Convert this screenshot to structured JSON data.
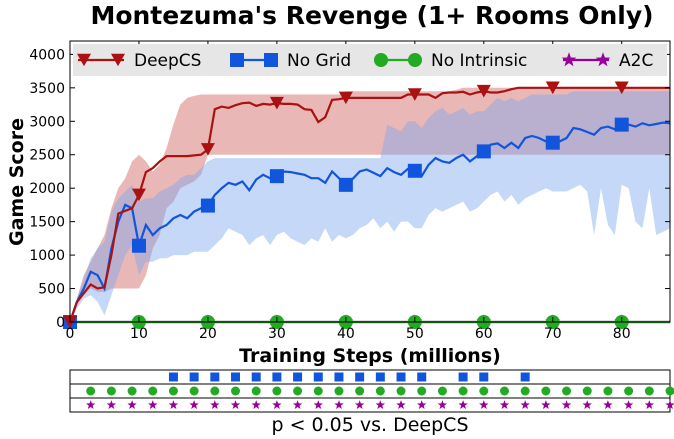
{
  "chart_data": {
    "type": "line",
    "title": "Montezuma's Revenge (1+ Rooms Only)",
    "xlabel": "Training Steps (millions)",
    "ylabel": "Game Score",
    "xlim": [
      0,
      87
    ],
    "ylim": [
      0,
      4200
    ],
    "xticks": [
      0,
      10,
      20,
      30,
      40,
      50,
      60,
      70,
      80
    ],
    "yticks": [
      0,
      500,
      1000,
      1500,
      2000,
      2500,
      3000,
      3500,
      4000
    ],
    "grid": false,
    "legend_position": "top",
    "markers_at": [
      0,
      10,
      20,
      30,
      40,
      50,
      60,
      70,
      80
    ],
    "series": [
      {
        "name": "DeepCS",
        "color": "#aa1111",
        "band_color": "#d06060",
        "marker": "triangle-down",
        "x": [
          0,
          1,
          2,
          3,
          4,
          5,
          6,
          7,
          8,
          9,
          10,
          11,
          12,
          13,
          14,
          15,
          16,
          17,
          18,
          19,
          20,
          21,
          22,
          23,
          24,
          25,
          26,
          27,
          28,
          29,
          30,
          31,
          32,
          33,
          34,
          35,
          36,
          37,
          38,
          39,
          40,
          41,
          42,
          43,
          44,
          45,
          46,
          47,
          48,
          49,
          50,
          51,
          52,
          53,
          54,
          55,
          56,
          57,
          58,
          59,
          60,
          61,
          62,
          63,
          64,
          65,
          66,
          67,
          68,
          69,
          70,
          71,
          72,
          73,
          74,
          75,
          76,
          77,
          78,
          79,
          80,
          81,
          82,
          83,
          84,
          85,
          86,
          87
        ],
        "y": [
          0,
          300,
          430,
          560,
          500,
          520,
          1000,
          1620,
          1660,
          1700,
          1900,
          2240,
          2300,
          2400,
          2480,
          2480,
          2480,
          2480,
          2490,
          2500,
          2580,
          3180,
          3220,
          3200,
          3240,
          3270,
          3280,
          3230,
          3260,
          3250,
          3270,
          3260,
          3260,
          3250,
          3180,
          3170,
          2990,
          3060,
          3320,
          3330,
          3350,
          3350,
          3350,
          3350,
          3350,
          3350,
          3350,
          3350,
          3350,
          3400,
          3400,
          3400,
          3400,
          3350,
          3420,
          3430,
          3430,
          3440,
          3400,
          3430,
          3450,
          3430,
          3430,
          3450,
          3480,
          3500,
          3500,
          3500,
          3500,
          3500,
          3500,
          3500,
          3500,
          3500,
          3500,
          3500,
          3500,
          3500,
          3500,
          3500,
          3500,
          3500,
          3500,
          3500,
          3500,
          3500,
          3500,
          3500
        ],
        "upper": [
          0,
          350,
          700,
          900,
          1100,
          1300,
          1700,
          2000,
          2150,
          2400,
          2500,
          2400,
          2250,
          2350,
          2600,
          2950,
          3250,
          3350,
          3380,
          3400,
          3400,
          3400,
          3400,
          3400,
          3400,
          3400,
          3400,
          3400,
          3400,
          3400,
          3400,
          3400,
          3400,
          3400,
          3400,
          3400,
          3400,
          3400,
          3400,
          3400,
          3450,
          3450,
          3450,
          3450,
          3450,
          3450,
          3450,
          3450,
          3450,
          3450,
          3450,
          3450,
          3450,
          3450,
          3450,
          3450,
          3470,
          3500,
          3500,
          3500,
          3500,
          3500,
          3500,
          3500,
          3500,
          3500,
          3500,
          3500,
          3500,
          3500,
          3500,
          3500,
          3500,
          3500,
          3500,
          3500,
          3500,
          3500,
          3500,
          3500,
          3500,
          3500,
          3500,
          3500,
          3500,
          3500,
          3500,
          3500
        ],
        "lower": [
          0,
          250,
          400,
          500,
          450,
          450,
          500,
          500,
          500,
          500,
          500,
          700,
          1100,
          1300,
          1700,
          1800,
          2000,
          2050,
          2100,
          2200,
          2500,
          2500,
          2500,
          2500,
          2500,
          2500,
          2500,
          2500,
          2500,
          2500,
          2500,
          2500,
          2500,
          2500,
          2500,
          2500,
          2500,
          2500,
          2500,
          2500,
          2500,
          2500,
          2500,
          2500,
          2500,
          2500,
          2500,
          2500,
          2500,
          2500,
          2500,
          2500,
          2500,
          2500,
          2500,
          2500,
          2500,
          2500,
          2500,
          2500,
          2500,
          2500,
          2500,
          2500,
          2500,
          2500,
          2500,
          2500,
          2500,
          2500,
          2500,
          2500,
          2500,
          2500,
          2500,
          2500,
          2500,
          2500,
          2500,
          2500,
          2500,
          2500,
          2500,
          2500,
          2500,
          2500,
          2500,
          2500
        ]
      },
      {
        "name": "No Grid",
        "color": "#1155dd",
        "band_color": "#7fa8ee",
        "marker": "square",
        "x": [
          0,
          1,
          2,
          3,
          4,
          5,
          6,
          7,
          8,
          9,
          10,
          11,
          12,
          13,
          14,
          15,
          16,
          17,
          18,
          19,
          20,
          21,
          22,
          23,
          24,
          25,
          26,
          27,
          28,
          29,
          30,
          31,
          32,
          33,
          34,
          35,
          36,
          37,
          38,
          39,
          40,
          41,
          42,
          43,
          44,
          45,
          46,
          47,
          48,
          49,
          50,
          51,
          52,
          53,
          54,
          55,
          56,
          57,
          58,
          59,
          60,
          61,
          62,
          63,
          64,
          65,
          66,
          67,
          68,
          69,
          70,
          71,
          72,
          73,
          74,
          75,
          76,
          77,
          78,
          79,
          80,
          81,
          82,
          83,
          84,
          85,
          86,
          87
        ],
        "y": [
          0,
          300,
          500,
          750,
          700,
          500,
          1100,
          1500,
          1750,
          1700,
          1140,
          1450,
          1300,
          1400,
          1450,
          1550,
          1600,
          1550,
          1650,
          1700,
          1740,
          1900,
          2000,
          2080,
          2050,
          2100,
          1970,
          2130,
          2200,
          2150,
          2180,
          2250,
          2240,
          2220,
          2200,
          2150,
          2150,
          2080,
          2250,
          2150,
          2050,
          2140,
          2250,
          2280,
          2230,
          2180,
          2300,
          2240,
          2200,
          2290,
          2260,
          2180,
          2350,
          2450,
          2400,
          2380,
          2450,
          2500,
          2400,
          2480,
          2550,
          2650,
          2670,
          2600,
          2680,
          2600,
          2750,
          2780,
          2750,
          2700,
          2680,
          2700,
          2750,
          2900,
          2880,
          2840,
          2800,
          2900,
          2920,
          2880,
          2950,
          2950,
          2920,
          2970,
          2940,
          2960,
          2980,
          2970
        ],
        "upper": [
          0,
          350,
          650,
          950,
          1100,
          1200,
          1650,
          1850,
          1950,
          2050,
          1800,
          1850,
          1850,
          1950,
          2000,
          2050,
          2150,
          2200,
          2200,
          2300,
          2400,
          2450,
          2450,
          2450,
          2450,
          2450,
          2450,
          2450,
          2450,
          2450,
          2450,
          2450,
          2450,
          2450,
          2450,
          2450,
          2450,
          2450,
          2450,
          2450,
          2450,
          2450,
          2450,
          2450,
          2450,
          2450,
          2950,
          2900,
          2850,
          3000,
          3000,
          2900,
          3050,
          3150,
          3200,
          3100,
          3150,
          3200,
          3100,
          3150,
          3150,
          3250,
          3350,
          3300,
          3350,
          3300,
          3350,
          3400,
          3400,
          3400,
          3400,
          3400,
          3400,
          3450,
          3450,
          3450,
          3450,
          3450,
          3450,
          3450,
          3450,
          3450,
          3450,
          3450,
          3450,
          3450,
          3450,
          3450
        ],
        "lower": [
          0,
          200,
          350,
          400,
          300,
          100,
          400,
          700,
          1000,
          1150,
          700,
          900,
          900,
          950,
          950,
          1000,
          1000,
          1000,
          1050,
          1050,
          1050,
          1150,
          1250,
          1400,
          1350,
          1300,
          1150,
          1250,
          1300,
          1150,
          1300,
          1350,
          1250,
          1200,
          1150,
          1250,
          1200,
          1400,
          1200,
          1300,
          1250,
          1300,
          1400,
          1450,
          1550,
          1400,
          1500,
          1350,
          1500,
          1500,
          1400,
          1400,
          1600,
          1700,
          1650,
          1700,
          1750,
          1800,
          1650,
          1700,
          1800,
          1900,
          1950,
          1800,
          1900,
          1750,
          1850,
          1900,
          1950,
          2000,
          1950,
          1950,
          1950,
          2000,
          2050,
          1950,
          1300,
          2000,
          1450,
          1300,
          2050,
          2000,
          1500,
          1400,
          2000,
          1300,
          1350,
          1400
        ]
      },
      {
        "name": "No Intrinsic",
        "color": "#22aa22",
        "marker": "circle",
        "x": [
          0,
          87
        ],
        "y": [
          0,
          0
        ]
      },
      {
        "name": "A2C",
        "color": "#990099",
        "marker": "star",
        "x": [
          0,
          87
        ],
        "y": [
          0,
          0
        ]
      }
    ],
    "significance": {
      "label": "p < 0.05 vs. DeepCS",
      "rows": [
        {
          "name": "No Grid",
          "color": "#1155dd",
          "marker": "square",
          "x": [
            15,
            18,
            21,
            24,
            27,
            30,
            33,
            36,
            39,
            42,
            45,
            48,
            51,
            57,
            60,
            66
          ]
        },
        {
          "name": "No Intrinsic",
          "color": "#22aa22",
          "marker": "circle",
          "x": [
            3,
            6,
            9,
            12,
            15,
            18,
            21,
            24,
            27,
            30,
            33,
            36,
            39,
            42,
            45,
            48,
            51,
            54,
            57,
            60,
            63,
            66,
            69,
            72,
            75,
            78,
            81,
            84,
            87
          ]
        },
        {
          "name": "A2C",
          "color": "#990099",
          "marker": "star",
          "x": [
            3,
            6,
            9,
            12,
            15,
            18,
            21,
            24,
            27,
            30,
            33,
            36,
            39,
            42,
            45,
            48,
            51,
            54,
            57,
            60,
            63,
            66,
            69,
            72,
            75,
            78,
            81,
            84,
            87
          ]
        }
      ]
    }
  }
}
